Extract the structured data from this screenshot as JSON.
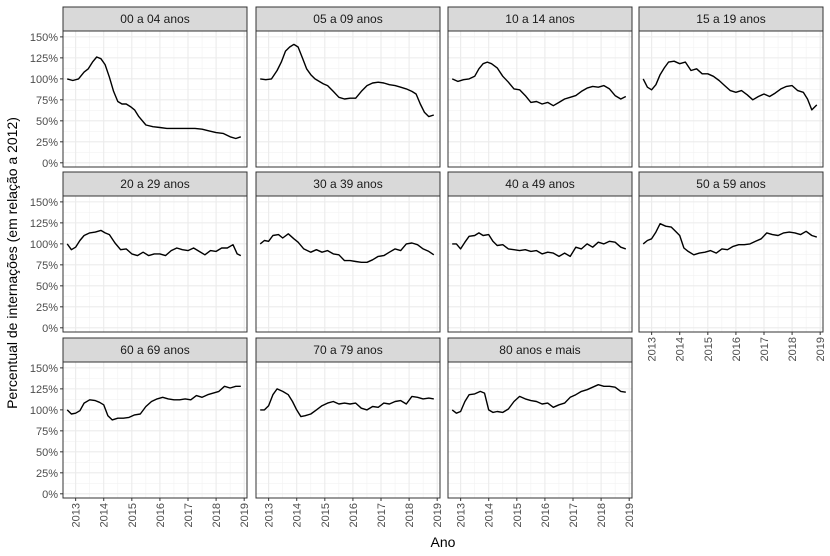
{
  "chart_data": {
    "type": "line",
    "layout": "facet-grid 4 columns x 3 rows",
    "xlabel": "Ano",
    "ylabel": "Percentual de internações (em relação a 2012)",
    "ylim": [
      -5,
      157
    ],
    "xlim": [
      2012.55,
      2019.1
    ],
    "x_ticks": [
      2013,
      2014,
      2015,
      2016,
      2017,
      2018,
      2019
    ],
    "x_tick_labels": [
      "2013",
      "2014",
      "2015",
      "2016",
      "2017",
      "2018",
      "2019"
    ],
    "y_ticks": [
      0,
      25,
      50,
      75,
      100,
      125,
      150
    ],
    "y_tick_labels": [
      "0%",
      "25%",
      "50%",
      "75%",
      "100%",
      "125%",
      "150%"
    ],
    "grid": true,
    "line_color": "#000000",
    "strip_color": "#d9d9d9",
    "panels": [
      {
        "label": "00 a 04 anos",
        "x": [
          2012.7,
          2012.9,
          2013.1,
          2013.3,
          2013.45,
          2013.6,
          2013.75,
          2013.9,
          2014.05,
          2014.2,
          2014.35,
          2014.5,
          2014.65,
          2014.8,
          2014.95,
          2015.1,
          2015.25,
          2015.5,
          2015.75,
          2016.0,
          2016.25,
          2016.5,
          2016.75,
          2017.0,
          2017.25,
          2017.5,
          2017.75,
          2018.0,
          2018.25,
          2018.5,
          2018.7,
          2018.88
        ],
        "y": [
          100,
          98,
          100,
          108,
          112,
          120,
          126,
          124,
          117,
          102,
          85,
          73,
          70,
          70,
          67,
          63,
          55,
          45,
          43,
          42,
          41,
          41,
          41,
          41,
          41,
          40,
          38,
          36,
          35,
          31,
          29,
          31
        ]
      },
      {
        "label": "05 a 09 anos",
        "x": [
          2012.7,
          2012.9,
          2013.1,
          2013.3,
          2013.45,
          2013.6,
          2013.75,
          2013.9,
          2014.05,
          2014.2,
          2014.35,
          2014.5,
          2014.65,
          2014.8,
          2014.95,
          2015.1,
          2015.3,
          2015.5,
          2015.7,
          2015.9,
          2016.1,
          2016.3,
          2016.5,
          2016.7,
          2016.9,
          2017.1,
          2017.3,
          2017.5,
          2017.7,
          2017.9,
          2018.1,
          2018.25,
          2018.4,
          2018.55,
          2018.7,
          2018.88
        ],
        "y": [
          100,
          99,
          100,
          110,
          120,
          133,
          138,
          141,
          138,
          125,
          112,
          105,
          100,
          97,
          94,
          92,
          85,
          78,
          76,
          77,
          77,
          85,
          92,
          95,
          96,
          95,
          93,
          92,
          90,
          88,
          85,
          82,
          70,
          60,
          55,
          57
        ]
      },
      {
        "label": "10 a 14 anos",
        "x": [
          2012.7,
          2012.9,
          2013.1,
          2013.3,
          2013.5,
          2013.65,
          2013.8,
          2013.95,
          2014.1,
          2014.3,
          2014.5,
          2014.7,
          2014.9,
          2015.1,
          2015.3,
          2015.5,
          2015.7,
          2015.9,
          2016.1,
          2016.3,
          2016.5,
          2016.7,
          2016.9,
          2017.1,
          2017.3,
          2017.5,
          2017.7,
          2017.9,
          2018.1,
          2018.3,
          2018.5,
          2018.7,
          2018.88
        ],
        "y": [
          100,
          97,
          99,
          100,
          103,
          112,
          118,
          120,
          118,
          113,
          103,
          96,
          88,
          87,
          80,
          72,
          73,
          70,
          72,
          68,
          72,
          76,
          78,
          80,
          85,
          89,
          91,
          90,
          92,
          88,
          80,
          76,
          79
        ]
      },
      {
        "label": "15 a 19 anos",
        "x": [
          2012.7,
          2012.85,
          2013.0,
          2013.15,
          2013.3,
          2013.45,
          2013.6,
          2013.8,
          2014.0,
          2014.2,
          2014.4,
          2014.6,
          2014.8,
          2015.0,
          2015.2,
          2015.4,
          2015.6,
          2015.8,
          2016.0,
          2016.2,
          2016.4,
          2016.6,
          2016.8,
          2017.0,
          2017.2,
          2017.4,
          2017.6,
          2017.8,
          2018.0,
          2018.2,
          2018.4,
          2018.55,
          2018.7,
          2018.88
        ],
        "y": [
          100,
          90,
          87,
          93,
          105,
          113,
          120,
          121,
          118,
          120,
          110,
          112,
          106,
          106,
          103,
          98,
          92,
          86,
          84,
          86,
          81,
          75,
          79,
          82,
          79,
          83,
          88,
          91,
          92,
          86,
          84,
          76,
          63,
          69
        ]
      },
      {
        "label": "20 a 29 anos",
        "x": [
          2012.7,
          2012.85,
          2013.0,
          2013.15,
          2013.3,
          2013.5,
          2013.7,
          2013.9,
          2014.05,
          2014.2,
          2014.4,
          2014.6,
          2014.8,
          2015.0,
          2015.2,
          2015.4,
          2015.6,
          2015.8,
          2016.0,
          2016.2,
          2016.4,
          2016.6,
          2016.8,
          2017.0,
          2017.2,
          2017.4,
          2017.6,
          2017.8,
          2018.0,
          2018.2,
          2018.4,
          2018.6,
          2018.75,
          2018.88
        ],
        "y": [
          100,
          93,
          96,
          104,
          110,
          113,
          114,
          116,
          113,
          111,
          101,
          93,
          94,
          88,
          86,
          90,
          86,
          88,
          88,
          86,
          92,
          95,
          93,
          92,
          95,
          91,
          87,
          92,
          91,
          95,
          95,
          99,
          88,
          86
        ]
      },
      {
        "label": "30 a 39 anos",
        "x": [
          2012.7,
          2012.85,
          2013.0,
          2013.15,
          2013.35,
          2013.5,
          2013.7,
          2013.9,
          2014.05,
          2014.25,
          2014.5,
          2014.7,
          2014.9,
          2015.1,
          2015.3,
          2015.5,
          2015.7,
          2015.9,
          2016.1,
          2016.3,
          2016.5,
          2016.7,
          2016.9,
          2017.1,
          2017.3,
          2017.5,
          2017.7,
          2017.9,
          2018.1,
          2018.3,
          2018.5,
          2018.7,
          2018.88
        ],
        "y": [
          100,
          104,
          103,
          110,
          111,
          107,
          112,
          106,
          102,
          94,
          90,
          93,
          90,
          92,
          88,
          87,
          80,
          80,
          79,
          78,
          78,
          81,
          85,
          86,
          90,
          94,
          92,
          100,
          101,
          99,
          94,
          91,
          87
        ]
      },
      {
        "label": "40 a 49 anos",
        "x": [
          2012.7,
          2012.85,
          2013.0,
          2013.15,
          2013.3,
          2013.5,
          2013.65,
          2013.8,
          2014.0,
          2014.15,
          2014.3,
          2014.5,
          2014.7,
          2014.9,
          2015.1,
          2015.3,
          2015.5,
          2015.7,
          2015.9,
          2016.1,
          2016.3,
          2016.5,
          2016.7,
          2016.9,
          2017.1,
          2017.3,
          2017.5,
          2017.7,
          2017.9,
          2018.1,
          2018.3,
          2018.5,
          2018.7,
          2018.88
        ],
        "y": [
          100,
          100,
          94,
          102,
          109,
          110,
          113,
          110,
          111,
          103,
          98,
          99,
          94,
          93,
          92,
          93,
          91,
          92,
          88,
          90,
          89,
          85,
          89,
          85,
          96,
          94,
          100,
          96,
          102,
          100,
          103,
          102,
          96,
          94
        ]
      },
      {
        "label": "50 a 59 anos",
        "x": [
          2012.7,
          2012.85,
          2013.0,
          2013.15,
          2013.3,
          2013.5,
          2013.7,
          2013.85,
          2014.0,
          2014.15,
          2014.3,
          2014.5,
          2014.7,
          2014.9,
          2015.1,
          2015.3,
          2015.5,
          2015.7,
          2015.9,
          2016.1,
          2016.3,
          2016.5,
          2016.7,
          2016.9,
          2017.1,
          2017.3,
          2017.5,
          2017.7,
          2017.9,
          2018.1,
          2018.3,
          2018.5,
          2018.7,
          2018.88
        ],
        "y": [
          100,
          104,
          106,
          114,
          124,
          121,
          120,
          115,
          110,
          95,
          91,
          87,
          89,
          90,
          92,
          89,
          94,
          93,
          97,
          99,
          99,
          100,
          103,
          106,
          113,
          111,
          110,
          113,
          114,
          113,
          111,
          115,
          110,
          108
        ]
      },
      {
        "label": "60 a 69 anos",
        "x": [
          2012.7,
          2012.85,
          2013.0,
          2013.15,
          2013.3,
          2013.5,
          2013.7,
          2013.85,
          2014.0,
          2014.15,
          2014.3,
          2014.5,
          2014.7,
          2014.9,
          2015.1,
          2015.3,
          2015.5,
          2015.7,
          2015.9,
          2016.1,
          2016.3,
          2016.5,
          2016.7,
          2016.9,
          2017.1,
          2017.3,
          2017.5,
          2017.7,
          2017.9,
          2018.1,
          2018.3,
          2018.5,
          2018.7,
          2018.88
        ],
        "y": [
          100,
          95,
          96,
          99,
          108,
          112,
          111,
          109,
          106,
          93,
          88,
          90,
          90,
          91,
          94,
          95,
          104,
          110,
          113,
          115,
          113,
          112,
          112,
          113,
          112,
          117,
          115,
          118,
          120,
          122,
          128,
          126,
          128,
          128
        ]
      },
      {
        "label": "70 a 79 anos",
        "x": [
          2012.7,
          2012.85,
          2013.0,
          2013.15,
          2013.3,
          2013.5,
          2013.7,
          2013.85,
          2014.0,
          2014.15,
          2014.3,
          2014.5,
          2014.7,
          2014.9,
          2015.1,
          2015.3,
          2015.5,
          2015.7,
          2015.9,
          2016.1,
          2016.3,
          2016.5,
          2016.7,
          2016.9,
          2017.1,
          2017.3,
          2017.5,
          2017.7,
          2017.9,
          2018.1,
          2018.3,
          2018.5,
          2018.7,
          2018.88
        ],
        "y": [
          100,
          100,
          105,
          118,
          125,
          122,
          118,
          110,
          100,
          92,
          93,
          95,
          100,
          105,
          108,
          110,
          107,
          108,
          107,
          108,
          102,
          100,
          104,
          103,
          108,
          107,
          110,
          111,
          107,
          116,
          115,
          113,
          114,
          113
        ]
      },
      {
        "label": "80 anos e mais",
        "x": [
          2012.7,
          2012.85,
          2013.0,
          2013.15,
          2013.3,
          2013.5,
          2013.7,
          2013.85,
          2014.0,
          2014.15,
          2014.3,
          2014.5,
          2014.7,
          2014.9,
          2015.1,
          2015.3,
          2015.5,
          2015.7,
          2015.9,
          2016.1,
          2016.3,
          2016.5,
          2016.7,
          2016.9,
          2017.1,
          2017.3,
          2017.5,
          2017.7,
          2017.9,
          2018.1,
          2018.3,
          2018.5,
          2018.7,
          2018.88
        ],
        "y": [
          100,
          96,
          98,
          110,
          118,
          119,
          122,
          120,
          100,
          97,
          98,
          97,
          101,
          110,
          116,
          113,
          111,
          110,
          107,
          108,
          103,
          106,
          108,
          115,
          118,
          122,
          124,
          127,
          130,
          128,
          128,
          127,
          122,
          121
        ]
      }
    ]
  }
}
